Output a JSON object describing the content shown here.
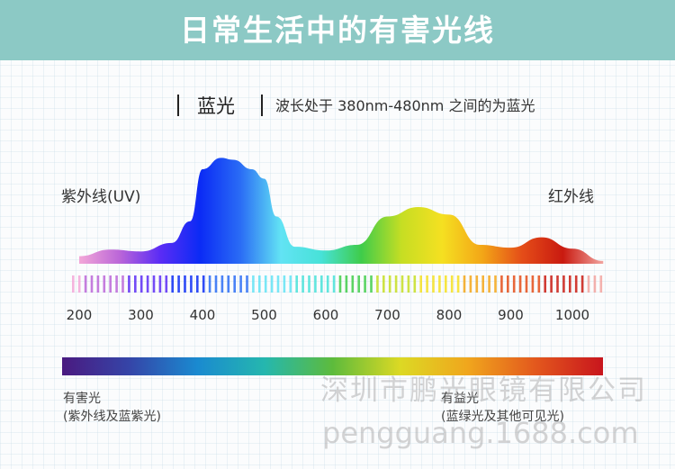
{
  "header": {
    "title": "日常生活中的有害光线"
  },
  "subtitle": {
    "name": "蓝光",
    "description": "波长处于 380nm-480nm 之间的为蓝光"
  },
  "labels": {
    "uv": "紫外线(UV)",
    "ir": "红外线"
  },
  "chart_data": {
    "type": "area",
    "x": [
      200,
      250,
      300,
      350,
      380,
      400,
      430,
      450,
      480,
      500,
      520,
      550,
      600,
      650,
      700,
      750,
      800,
      850,
      900,
      950,
      1000,
      1050
    ],
    "y": [
      8,
      15,
      13,
      22,
      45,
      100,
      112,
      110,
      100,
      90,
      50,
      18,
      14,
      20,
      50,
      60,
      52,
      20,
      17,
      28,
      16,
      3
    ],
    "xticks": [
      "200",
      "300",
      "400",
      "500",
      "600",
      "700",
      "800",
      "900",
      "1000"
    ],
    "xtick_values": [
      200,
      300,
      400,
      500,
      600,
      700,
      800,
      900,
      1000
    ],
    "xlim": [
      200,
      1050
    ],
    "ylim": [
      0,
      115
    ]
  },
  "legend": {
    "harmful_title": "有害光",
    "harmful_note": "(紫外线及蓝紫光)",
    "beneficial_title": "有益光",
    "beneficial_note": "(蓝绿光及其他可见光)"
  },
  "watermark": {
    "cn": "深圳市鹏光眼镜有限公司",
    "en": "pengguang.1688.com"
  },
  "colors": {
    "banner": "#8cc9c5",
    "spectrum": [
      "#f3a7d8",
      "#bb66d8",
      "#5b2cf5",
      "#0b2bf5",
      "#2a6cf5",
      "#62e3f4",
      "#47e2d8",
      "#3fcc4a",
      "#c6de23",
      "#f5e021",
      "#f3a617",
      "#e44c18",
      "#c91a10",
      "#f2a5a0"
    ],
    "bar": [
      "#4a1a80",
      "#3545a8",
      "#1a8ad0",
      "#25b7ae",
      "#5dbb3c",
      "#dcd924",
      "#f0a61d",
      "#e3581d",
      "#c8151d"
    ]
  }
}
